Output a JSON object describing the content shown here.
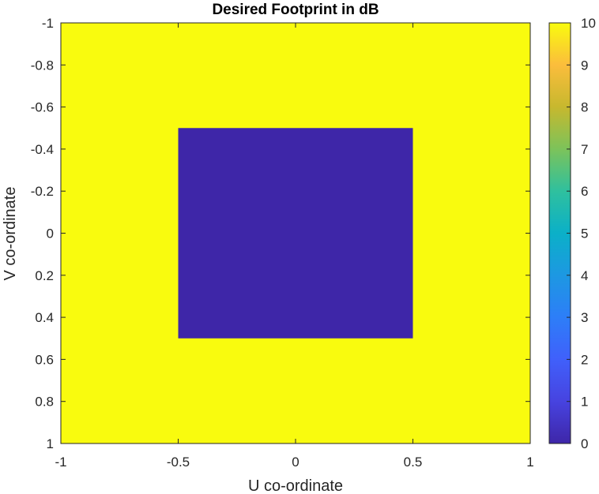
{
  "chart_data": {
    "type": "heatmap",
    "title": "Desired Footprint in dB",
    "xlabel": "U co-ordinate",
    "ylabel": "V co-ordinate",
    "xlim": [
      -1,
      1
    ],
    "ylim": [
      -1,
      1
    ],
    "y_direction": "reversed",
    "x_ticks": [
      "-1",
      "-0.5",
      "0",
      "0.5",
      "1"
    ],
    "y_ticks": [
      "-1",
      "-0.8",
      "-0.6",
      "-0.4",
      "-0.2",
      "0",
      "0.2",
      "0.4",
      "0.6",
      "0.8",
      "1"
    ],
    "background_value": 10,
    "regions": [
      {
        "u_range": [
          -0.5,
          0.5
        ],
        "v_range": [
          -0.5,
          0.5
        ],
        "value": 0
      }
    ],
    "colorbar": {
      "range": [
        0,
        10
      ],
      "ticks": [
        "0",
        "1",
        "2",
        "3",
        "4",
        "5",
        "6",
        "7",
        "8",
        "9",
        "10"
      ],
      "colormap": "parula",
      "placement": "right"
    },
    "colors": {
      "high": "#f9fb0e",
      "low": "#3e26a8"
    },
    "grid": false
  }
}
